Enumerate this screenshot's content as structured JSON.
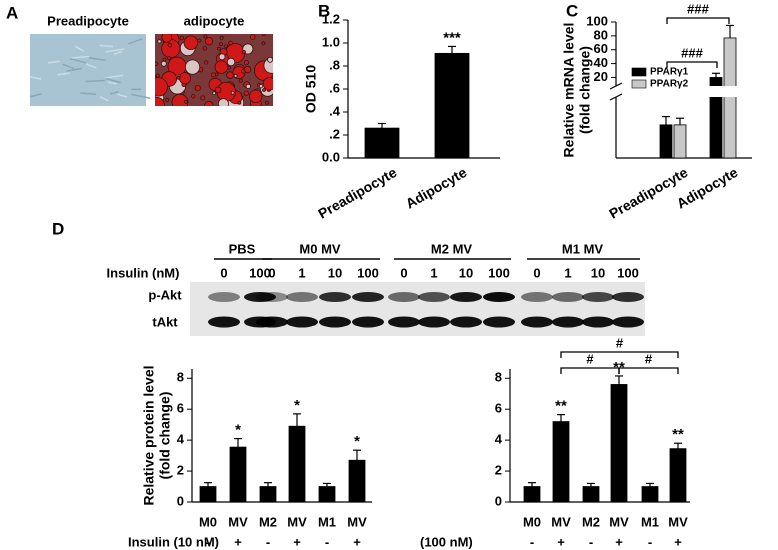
{
  "panel_a": {
    "label": "A",
    "images": [
      "Preadipocyte",
      "adipocyte"
    ]
  },
  "blot": {
    "label": "D",
    "groups": [
      "PBS",
      "M0 MV",
      "M2 MV",
      "M1 MV"
    ],
    "dose_label": "Insulin (nM)",
    "doses": [
      "0",
      "100",
      "0",
      "1",
      "10",
      "100",
      "0",
      "1",
      "10",
      "100",
      "0",
      "1",
      "10",
      "100"
    ],
    "rows": [
      "p-Akt",
      "tAkt"
    ]
  },
  "chart_data": [
    {
      "type": "bar",
      "panel_label": "B",
      "ylabel": "OD 510",
      "categories": [
        "Preadipocyte",
        "Adipocyte"
      ],
      "values": [
        0.26,
        0.91
      ],
      "errors": [
        0.04,
        0.06
      ],
      "color": "#000000",
      "ylim": [
        0,
        1.2
      ],
      "yticks": [
        {
          "value": 0,
          "label": "0.0"
        },
        {
          "value": 0.2,
          "label": ".2"
        },
        {
          "value": 0.4,
          "label": ".4"
        },
        {
          "value": 0.6,
          "label": ".6"
        },
        {
          "value": 0.8,
          "label": ".8"
        },
        {
          "value": 1.0,
          "label": "1.0"
        },
        {
          "value": 1.2,
          "label": "1.2"
        }
      ],
      "significance": [
        null,
        "***"
      ]
    },
    {
      "type": "bar",
      "panel_label": "C",
      "ylabel": [
        "Relative mRNA level",
        "(fold change)"
      ],
      "categories": [
        "Preadipocyte",
        "Adipocyte"
      ],
      "series": [
        {
          "name": "PPARγ1",
          "color": "#000000",
          "values": [
            1.0,
            20
          ],
          "errors": [
            0.25,
            6
          ]
        },
        {
          "name": "PPARγ2",
          "color": "#c8c8c8",
          "values": [
            1.0,
            77
          ],
          "errors": [
            0.2,
            18
          ]
        }
      ],
      "ylim": [
        0,
        100
      ],
      "axis_break": [
        1.75,
        12
      ],
      "yticks": [
        20,
        40,
        60,
        80,
        100
      ],
      "comparisons": [
        "###",
        "###"
      ]
    },
    {
      "type": "bar",
      "ylabel": [
        "Relative protein level",
        "(fold change)"
      ],
      "categories": [
        "M0",
        "MV",
        "M2",
        "MV",
        "M1",
        "MV"
      ],
      "values": [
        1,
        3.55,
        1,
        4.9,
        1,
        2.7
      ],
      "errors": [
        0.25,
        0.55,
        0.25,
        0.8,
        0.2,
        0.65
      ],
      "color": "#000000",
      "ylim": [
        0,
        8.6
      ],
      "yticks": [
        0,
        2,
        4,
        6,
        8
      ],
      "significance": [
        null,
        "*",
        null,
        "*",
        null,
        "*"
      ],
      "treatment": {
        "label": "Insulin (10 nM)",
        "signs": [
          "-",
          "+",
          "-",
          "+",
          "-",
          "+"
        ]
      }
    },
    {
      "type": "bar",
      "categories": [
        "M0",
        "MV",
        "M2",
        "MV",
        "M1",
        "MV"
      ],
      "values": [
        1,
        5.2,
        1,
        7.6,
        1,
        3.45
      ],
      "errors": [
        0.25,
        0.45,
        0.2,
        0.55,
        0.2,
        0.35
      ],
      "color": "#000000",
      "ylim": [
        0,
        8.6
      ],
      "yticks": [
        0,
        2,
        4,
        6,
        8
      ],
      "significance": [
        null,
        "**",
        null,
        "**",
        null,
        "**"
      ],
      "treatment": {
        "label": "(100 nM)",
        "signs": [
          "-",
          "+",
          "-",
          "+",
          "-",
          "+"
        ]
      },
      "comparisons": [
        "#",
        "#",
        "#"
      ]
    }
  ]
}
